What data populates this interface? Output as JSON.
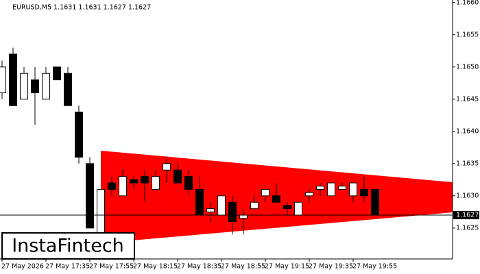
{
  "chart_data": {
    "type": "candlestick",
    "title": "EURUSD,M5  1.1631 1.1631 1.1627 1.1627",
    "categories": [
      "27 May 2026",
      null,
      null,
      null,
      "27 May 17:35",
      null,
      null,
      null,
      "27 May 17:55",
      null,
      null,
      null,
      "27 May 18:15",
      null,
      null,
      null,
      "27 May 18:35",
      null,
      null,
      null,
      "27 May 18:55",
      null,
      null,
      null,
      "27 May 19:15",
      null,
      null,
      null,
      "27 May 19:35",
      null,
      null,
      null,
      "27 May 19:55",
      null,
      null
    ],
    "open": [
      1.1646,
      1.1652,
      1.1645,
      1.1648,
      1.1645,
      1.165,
      1.1649,
      1.1643,
      1.1635,
      1.1624,
      1.1632,
      1.163,
      1.16325,
      1.1633,
      1.1631,
      1.1634,
      1.1634,
      1.1633,
      1.1631,
      1.16275,
      1.1627,
      1.1629,
      1.16265,
      1.1628,
      1.163,
      1.163,
      1.16285,
      1.1627,
      1.163,
      1.1631,
      1.163,
      1.1631,
      1.163,
      1.1631,
      1.1631
    ],
    "high": [
      1.1651,
      1.1653,
      1.165,
      1.165,
      1.165,
      1.165,
      1.165,
      1.1644,
      1.1636,
      1.1631,
      1.1633,
      1.1634,
      1.1633,
      1.1634,
      1.1634,
      1.1636,
      1.1635,
      1.1634,
      1.1633,
      1.1629,
      1.163,
      1.163,
      1.1628,
      1.163,
      1.1631,
      1.1632,
      1.1629,
      1.1629,
      1.1631,
      1.1632,
      1.1632,
      1.1632,
      1.1632,
      1.1633,
      1.1631
    ],
    "low": [
      1.1645,
      1.1644,
      1.1645,
      1.1641,
      1.1645,
      1.1648,
      1.1644,
      1.1635,
      1.1625,
      1.1623,
      1.163,
      1.163,
      1.1631,
      1.1629,
      1.1631,
      1.1632,
      1.1632,
      1.163,
      1.1627,
      1.1626,
      1.1627,
      1.1624,
      1.1624,
      1.1628,
      1.1629,
      1.1629,
      1.1627,
      1.1627,
      1.1629,
      1.163,
      1.163,
      1.1631,
      1.1629,
      1.1629,
      1.1627
    ],
    "close": [
      1.165,
      1.1644,
      1.1649,
      1.1646,
      1.1649,
      1.1648,
      1.1644,
      1.1636,
      1.1625,
      1.1631,
      1.1631,
      1.1633,
      1.1632,
      1.1632,
      1.1633,
      1.1635,
      1.1632,
      1.1631,
      1.1627,
      1.1628,
      1.163,
      1.1626,
      1.1627,
      1.1629,
      1.1631,
      1.1629,
      1.1628,
      1.1629,
      1.16305,
      1.16315,
      1.1632,
      1.16315,
      1.1632,
      1.163,
      1.1627
    ],
    "up_color": "#ffffff",
    "down_color": "#000000",
    "ylim": [
      1.16202,
      1.16604
    ],
    "yticks": [
      1.1625,
      {
        "value": 1.163,
        "label": "1.1630"
      },
      1.1635,
      {
        "value": 1.164,
        "label": "1.1640"
      },
      1.1645,
      {
        "value": 1.165,
        "label": "1.1650"
      },
      1.1655,
      {
        "value": 1.166,
        "label": "1.1660"
      }
    ],
    "current_price": {
      "value": 1.1627,
      "label": "1.1627"
    },
    "pattern_color": "#ff0000",
    "logo": "InstaFintech"
  }
}
